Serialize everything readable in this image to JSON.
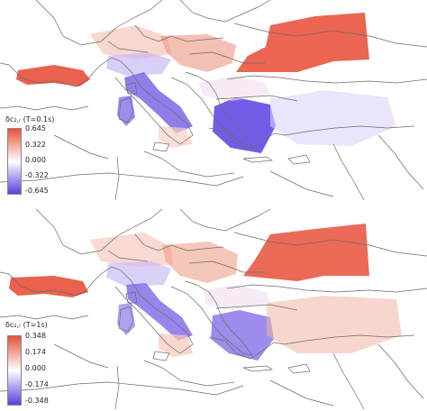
{
  "colors": {
    "positive": "#e8503a",
    "negative": "#5a3fe0",
    "neutral": "#ffffff",
    "borders": "#6a6a6a"
  },
  "panels": [
    {
      "title": "δc₂,ᵣ (T=0.1s)",
      "ticks": [
        "0.645",
        "0.322",
        "0.000",
        "-0.322",
        "-0.645"
      ]
    },
    {
      "title": "δc₂,ᵣ (T=1s)",
      "ticks": [
        "0.348",
        "0.174",
        "0.000",
        "-0.174",
        "-0.348"
      ]
    }
  ]
}
